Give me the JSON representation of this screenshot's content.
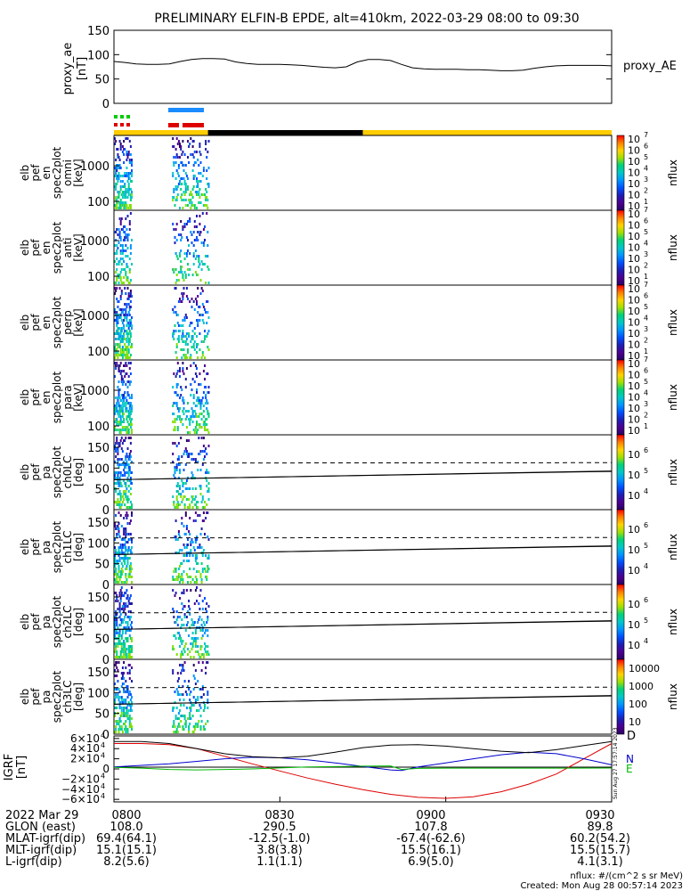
{
  "title": "PRELIMINARY ELFIN-B EPDE, alt=410km, 2022-03-29 08:00 to 09:30",
  "top_panel": {
    "ylabel_lines": [
      "proxy_ae",
      "[nT]"
    ],
    "legend": "proxy_AE",
    "yticks": [
      "150",
      "100",
      "50",
      "0"
    ]
  },
  "spec_panels": [
    {
      "label_lines": [
        "elb",
        "pef",
        "en",
        "spec2plot",
        "omni",
        "[keV]"
      ],
      "yticks": [
        "1000",
        "100"
      ]
    },
    {
      "label_lines": [
        "elb",
        "pef",
        "en",
        "spec2plot",
        "anti",
        "[keV]"
      ],
      "yticks": [
        "1000",
        "100"
      ]
    },
    {
      "label_lines": [
        "elb",
        "pef",
        "en",
        "spec2plot",
        "perp",
        "[keV]"
      ],
      "yticks": [
        "1000",
        "100"
      ]
    },
    {
      "label_lines": [
        "elb",
        "pef",
        "en",
        "spec2plot",
        "para",
        "[keV]"
      ],
      "yticks": [
        "1000",
        "100"
      ]
    }
  ],
  "pa_panels": [
    {
      "label_lines": [
        "elb",
        "pef",
        "pa",
        "spec2plot",
        "ch0LC",
        "[deg]"
      ],
      "yticks": [
        "150",
        "100",
        "50",
        "0"
      ]
    },
    {
      "label_lines": [
        "elb",
        "pef",
        "pa",
        "spec2plot",
        "ch1LC",
        "[deg]"
      ],
      "yticks": [
        "150",
        "100",
        "50",
        "0"
      ]
    },
    {
      "label_lines": [
        "elb",
        "pef",
        "pa",
        "spec2plot",
        "ch2LC",
        "[deg]"
      ],
      "yticks": [
        "150",
        "100",
        "50",
        "0"
      ]
    },
    {
      "label_lines": [
        "elb",
        "pef",
        "pa",
        "spec2plot",
        "ch3LC",
        "[deg]"
      ],
      "yticks": [
        "150",
        "100",
        "50",
        "0"
      ]
    }
  ],
  "colorbar": {
    "label": "nflux",
    "bar1_ticks": [
      "10",
      "10",
      "10",
      "10",
      "10",
      "10",
      "10"
    ],
    "bar1_exps": [
      "7",
      "6",
      "5",
      "4",
      "3",
      "2",
      "1"
    ],
    "bar5_ticks": [
      "10",
      "10",
      "10"
    ],
    "bar5_exps": [
      "6",
      "5",
      "4"
    ],
    "bar8_ticks": [
      "10000",
      "1000",
      "100",
      "10"
    ]
  },
  "igrf_panel": {
    "ylabel_lines": [
      "IGRF",
      "[nT]"
    ],
    "ytick_mant": [
      "6×10",
      "4×10",
      "2×10",
      "0",
      "−2×10",
      "−4×10",
      "−6×10"
    ],
    "ytick_exp": [
      "4",
      "4",
      "4",
      "",
      "4",
      "4",
      "4"
    ],
    "legend": [
      "D",
      "N",
      "E"
    ],
    "legend_colors": [
      "#dd0000",
      "#0000cc",
      "#00bb00"
    ],
    "side_stamp": "Sun Aug 27 17:57:14 2023"
  },
  "footer": {
    "row_labels": [
      "2022 Mar 29",
      "GLON (east)",
      "MLAT-igrf(dip)",
      "MLT-igrf(dip)",
      "L-igrf(dip)"
    ],
    "columns": [
      [
        "0800",
        "108.0",
        "69.4(64.1)",
        "15.1(15.1)",
        "8.2(5.6)"
      ],
      [
        "0830",
        "290.5",
        "-12.5(-1.0)",
        "3.8(3.8)",
        "1.1(1.1)"
      ],
      [
        "0900",
        "107.8",
        "-67.4(-62.6)",
        "15.5(16.1)",
        "6.9(5.0)"
      ],
      [
        "0930",
        "89.8",
        "60.2(54.2)",
        "15.5(15.7)",
        "4.1(3.1)"
      ]
    ],
    "units_note": "nflux: #/(cm^2 s sr MeV)",
    "created": "Created: Mon Aug 28 00:57:14 2023"
  },
  "chart_data": {
    "type": "line",
    "x_range_minutes": [
      0,
      90
    ],
    "x_tick_labels": [
      "0800",
      "0830",
      "0900",
      "0930"
    ],
    "proxy_ae": {
      "ylim": [
        0,
        150
      ],
      "x": [
        0,
        2,
        4,
        6,
        8,
        10,
        12,
        14,
        16,
        18,
        20,
        22,
        24,
        26,
        28,
        30,
        32,
        34,
        36,
        38,
        40,
        42,
        44,
        46,
        48,
        50,
        52,
        54,
        56,
        58,
        60,
        62,
        64,
        66,
        68,
        70,
        72,
        74,
        76,
        78,
        80,
        82,
        84,
        86,
        88,
        90
      ],
      "values": [
        86,
        84,
        81,
        80,
        80,
        81,
        86,
        90,
        92,
        92,
        91,
        85,
        82,
        80,
        80,
        80,
        79,
        78,
        76,
        74,
        73,
        75,
        85,
        90,
        90,
        88,
        80,
        73,
        71,
        70,
        70,
        70,
        69,
        69,
        68,
        67,
        67,
        68,
        72,
        75,
        77,
        78,
        78,
        78,
        78,
        77
      ]
    },
    "orbit_bar": {
      "segments": [
        {
          "x0": 0,
          "x1": 17,
          "color": "#ffcc00"
        },
        {
          "x0": 17,
          "x1": 45,
          "color": "#000000"
        },
        {
          "x0": 45,
          "x1": 90,
          "color": "#ffcc00"
        }
      ]
    },
    "igrf": {
      "ylim": [
        -65000,
        65000
      ],
      "series": [
        {
          "name": "D",
          "color": "#dd0000",
          "x": [
            0,
            5,
            10,
            15,
            20,
            25,
            30,
            35,
            40,
            45,
            50,
            55,
            60,
            65,
            70,
            75,
            80,
            85,
            90
          ],
          "values": [
            50000,
            50000,
            48000,
            40000,
            25000,
            10000,
            -4000,
            -18000,
            -30000,
            -41000,
            -50000,
            -56000,
            -58000,
            -55000,
            -45000,
            -30000,
            -10000,
            20000,
            50000
          ]
        },
        {
          "name": "N",
          "color": "#0000cc",
          "x": [
            0,
            5,
            10,
            15,
            20,
            25,
            30,
            35,
            40,
            45,
            50,
            52,
            55,
            60,
            65,
            70,
            75,
            80,
            85,
            90
          ],
          "values": [
            4000,
            7000,
            10000,
            15000,
            20000,
            23000,
            22000,
            18000,
            12000,
            5000,
            -2000,
            -3000,
            4000,
            12000,
            20000,
            28000,
            33000,
            30000,
            20000,
            8000
          ]
        },
        {
          "name": "E",
          "color": "#00bb00",
          "x": [
            0,
            5,
            10,
            15,
            20,
            25,
            30,
            35,
            40,
            45,
            50,
            52,
            55,
            60,
            70,
            80,
            90
          ],
          "values": [
            3000,
            1500,
            -1000,
            -2000,
            -1000,
            0,
            2000,
            4000,
            4500,
            5500,
            6000,
            -1000,
            1000,
            1500,
            1500,
            1500,
            1800
          ]
        },
        {
          "name": "",
          "color": "#000000",
          "x": [
            0,
            5,
            10,
            15,
            20,
            25,
            30,
            35,
            40,
            45,
            50,
            55,
            60,
            65,
            70,
            75,
            80,
            85,
            90
          ],
          "values": [
            54000,
            54000,
            50000,
            40000,
            30000,
            24000,
            22000,
            25000,
            33000,
            42000,
            47000,
            48000,
            45000,
            40000,
            35000,
            32000,
            38000,
            46000,
            54000
          ]
        }
      ]
    },
    "pa_reference_lines": {
      "dashed_deg": [
        112,
        113
      ],
      "solid_upper_deg": [
        112,
        114
      ],
      "solid_lower_deg": [
        72,
        73
      ]
    }
  }
}
